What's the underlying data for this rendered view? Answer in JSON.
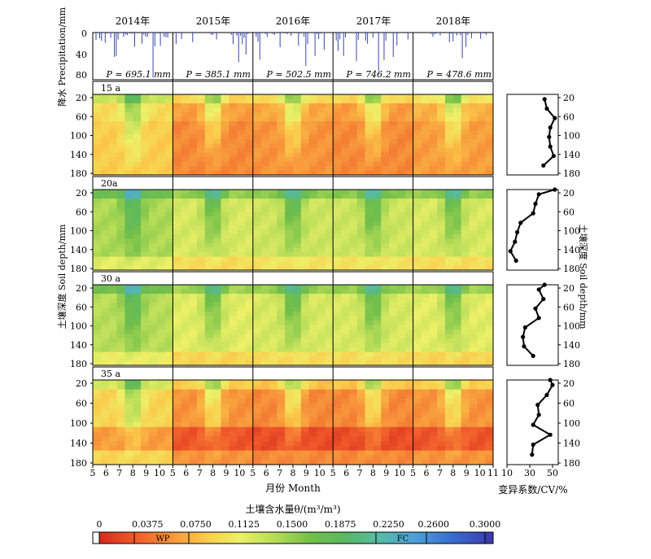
{
  "years": [
    "2014年",
    "2015年",
    "2016年",
    "2017年",
    "2018年"
  ],
  "precip_labels": [
    "P = 695.1 mm",
    "P = 385.1 mm",
    "P = 502.5 mm",
    "P = 746.2 mm",
    "P = 478.6 mm"
  ],
  "precip_axis_label": "降水 Precipitation/mm",
  "precip_ticks": [
    "0",
    "40",
    "80"
  ],
  "depth_ticks": [
    "20",
    "60",
    "100",
    "140",
    "180"
  ],
  "month_ticks": [
    "5",
    "6",
    "7",
    "8",
    "9",
    "10",
    "5",
    "6",
    "7",
    "8",
    "9",
    "10",
    "5",
    "6",
    "7",
    "8",
    "9",
    "10",
    "5",
    "6",
    "7",
    "8",
    "9",
    "10",
    "5",
    "6",
    "7",
    "8",
    "9",
    "10",
    "11"
  ],
  "panel_labels": [
    "15 a",
    "20a",
    "30 a",
    "35 a"
  ],
  "x_axis_label": "月份 Month",
  "y_axis_label_left": "土壤深度 Soil depth/mm",
  "y_axis_label_right": "土壤深度 Soil depth/mm",
  "cv_axis_label": "变异系数/CV/%",
  "cv_ticks": [
    "10",
    "30",
    "50"
  ],
  "colorbar": {
    "title": "土壤含水量θ/(m³/m³)",
    "ticks": [
      "0",
      "0.0375",
      "0.0750",
      "0.1125",
      "0.1500",
      "0.1875",
      "0.2250",
      "0.2600",
      "0.3000"
    ],
    "wp_label": "WP",
    "fc_label": "FC",
    "colors": [
      "#d42a1e",
      "#f05a2a",
      "#f7923a",
      "#fbc94a",
      "#eef068",
      "#b6dc58",
      "#74c04a",
      "#5ab860",
      "#56bba8",
      "#4ea0d8",
      "#3a6fd0",
      "#3a43b8"
    ]
  },
  "chart_data": [
    {
      "type": "bar",
      "title": "降水 Precipitation/mm",
      "categories": [
        "2014年",
        "2015年",
        "2016年",
        "2017年",
        "2018年"
      ],
      "series": [
        {
          "name": "P",
          "values": [
            695.1,
            385.1,
            502.5,
            746.2,
            478.6
          ]
        }
      ],
      "ylabel": "降水 Precipitation/mm",
      "ylim": [
        0,
        90
      ]
    },
    {
      "type": "heatmap",
      "title": "土壤含水量θ/(m³/m³)",
      "x": [
        "5",
        "6",
        "7",
        "8",
        "9",
        "10",
        "11"
      ],
      "y": [
        "20",
        "60",
        "100",
        "140",
        "180"
      ],
      "xlabel": "月份 Month",
      "ylabel": "土壤深度 Soil depth/mm",
      "panels": [
        "15 a",
        "20a",
        "30 a",
        "35 a"
      ],
      "zlim": [
        0,
        0.3
      ],
      "mean_theta_by_panel_year": [
        [
          0.095,
          0.06,
          0.065,
          0.06,
          0.07
        ],
        [
          0.14,
          0.12,
          0.125,
          0.125,
          0.12
        ],
        [
          0.135,
          0.115,
          0.12,
          0.12,
          0.115
        ],
        [
          0.09,
          0.055,
          0.05,
          0.05,
          0.055
        ]
      ]
    },
    {
      "type": "line",
      "title": "变异系数/CV/%",
      "xlabel": "变异系数/CV/%",
      "ylabel": "土壤深度 Soil depth/mm",
      "xlim": [
        10,
        55
      ],
      "ylim": [
        180,
        10
      ],
      "series": [
        {
          "name": "15 a",
          "x": [
            43,
            45,
            52,
            48,
            47,
            48,
            51,
            42
          ],
          "y": [
            20,
            40,
            60,
            80,
            100,
            120,
            140,
            160
          ]
        },
        {
          "name": "20a",
          "x": [
            52,
            38,
            35,
            33,
            22,
            19,
            17,
            13,
            18
          ],
          "y": [
            10,
            20,
            40,
            60,
            80,
            100,
            120,
            140,
            160
          ]
        },
        {
          "name": "30 a",
          "x": [
            43,
            38,
            42,
            35,
            38,
            26,
            24,
            25,
            33
          ],
          "y": [
            10,
            20,
            40,
            60,
            80,
            100,
            120,
            140,
            160
          ]
        },
        {
          "name": "35 a",
          "x": [
            48,
            50,
            45,
            37,
            38,
            33,
            48,
            33,
            32
          ],
          "y": [
            10,
            20,
            40,
            60,
            80,
            100,
            120,
            140,
            160
          ]
        }
      ]
    }
  ]
}
